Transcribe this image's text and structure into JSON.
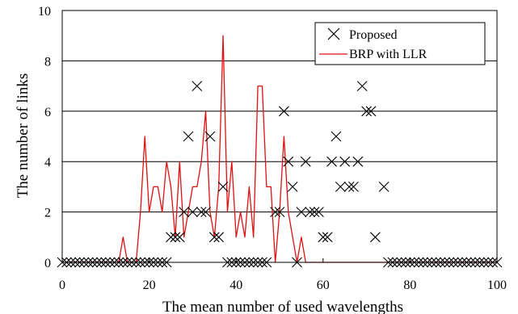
{
  "chart_data": {
    "type": "line",
    "title": "",
    "xlabel": "The mean number of used wavelengths",
    "ylabel": "The number of links",
    "xlim": [
      0,
      100
    ],
    "ylim": [
      0,
      10
    ],
    "xticks": [
      0,
      20,
      40,
      60,
      80,
      100
    ],
    "yticks": [
      0,
      2,
      4,
      6,
      8,
      10
    ],
    "grid": "horizontal",
    "legend_position": "top-right",
    "series": [
      {
        "name": "Proposed",
        "type": "scatter",
        "marker": "x",
        "color": "#000000",
        "points": [
          [
            0,
            0
          ],
          [
            1,
            0
          ],
          [
            2,
            0
          ],
          [
            3,
            0
          ],
          [
            4,
            0
          ],
          [
            5,
            0
          ],
          [
            6,
            0
          ],
          [
            7,
            0
          ],
          [
            8,
            0
          ],
          [
            9,
            0
          ],
          [
            10,
            0
          ],
          [
            11,
            0
          ],
          [
            12,
            0
          ],
          [
            13,
            0
          ],
          [
            14,
            0
          ],
          [
            15,
            0
          ],
          [
            16,
            0
          ],
          [
            17,
            0
          ],
          [
            18,
            0
          ],
          [
            19,
            0
          ],
          [
            20,
            0
          ],
          [
            21,
            0
          ],
          [
            22,
            0
          ],
          [
            23,
            0
          ],
          [
            24,
            0
          ],
          [
            25,
            1
          ],
          [
            26,
            1
          ],
          [
            27,
            1
          ],
          [
            28,
            2
          ],
          [
            29,
            5
          ],
          [
            30,
            2
          ],
          [
            31,
            7
          ],
          [
            32,
            2
          ],
          [
            33,
            2
          ],
          [
            34,
            5
          ],
          [
            35,
            1
          ],
          [
            36,
            1
          ],
          [
            37,
            3
          ],
          [
            38,
            0
          ],
          [
            39,
            0
          ],
          [
            40,
            0
          ],
          [
            41,
            0
          ],
          [
            42,
            0
          ],
          [
            43,
            0
          ],
          [
            44,
            0
          ],
          [
            45,
            0
          ],
          [
            46,
            0
          ],
          [
            47,
            0
          ],
          [
            49,
            2
          ],
          [
            50,
            2
          ],
          [
            51,
            6
          ],
          [
            52,
            4
          ],
          [
            53,
            3
          ],
          [
            54,
            0
          ],
          [
            55,
            2
          ],
          [
            56,
            4
          ],
          [
            57,
            2
          ],
          [
            58,
            2
          ],
          [
            59,
            2
          ],
          [
            60,
            1
          ],
          [
            61,
            1
          ],
          [
            62,
            4
          ],
          [
            63,
            5
          ],
          [
            64,
            3
          ],
          [
            65,
            4
          ],
          [
            66,
            3
          ],
          [
            67,
            3
          ],
          [
            68,
            4
          ],
          [
            69,
            7
          ],
          [
            70,
            6
          ],
          [
            71,
            6
          ],
          [
            72,
            1
          ],
          [
            74,
            3
          ],
          [
            75,
            0
          ],
          [
            76,
            0
          ],
          [
            77,
            0
          ],
          [
            78,
            0
          ],
          [
            79,
            0
          ],
          [
            80,
            0
          ],
          [
            81,
            0
          ],
          [
            82,
            0
          ],
          [
            83,
            0
          ],
          [
            84,
            0
          ],
          [
            85,
            0
          ],
          [
            86,
            0
          ],
          [
            87,
            0
          ],
          [
            88,
            0
          ],
          [
            89,
            0
          ],
          [
            90,
            0
          ],
          [
            91,
            0
          ],
          [
            92,
            0
          ],
          [
            93,
            0
          ],
          [
            94,
            0
          ],
          [
            95,
            0
          ],
          [
            96,
            0
          ],
          [
            97,
            0
          ],
          [
            98,
            0
          ],
          [
            99,
            0
          ],
          [
            100,
            0
          ]
        ]
      },
      {
        "name": "BRP with LLR",
        "type": "line",
        "color": "#e01010",
        "points": [
          [
            0,
            0
          ],
          [
            1,
            0
          ],
          [
            2,
            0
          ],
          [
            3,
            0
          ],
          [
            4,
            0
          ],
          [
            5,
            0
          ],
          [
            6,
            0
          ],
          [
            7,
            0
          ],
          [
            8,
            0
          ],
          [
            9,
            0
          ],
          [
            10,
            0
          ],
          [
            11,
            0
          ],
          [
            12,
            0
          ],
          [
            13,
            0
          ],
          [
            14,
            1
          ],
          [
            15,
            0
          ],
          [
            16,
            0
          ],
          [
            17,
            0
          ],
          [
            18,
            2
          ],
          [
            19,
            5
          ],
          [
            20,
            2
          ],
          [
            21,
            3
          ],
          [
            22,
            3
          ],
          [
            23,
            2
          ],
          [
            24,
            4
          ],
          [
            25,
            3
          ],
          [
            26,
            1
          ],
          [
            27,
            4
          ],
          [
            28,
            1
          ],
          [
            29,
            2
          ],
          [
            30,
            3
          ],
          [
            31,
            3
          ],
          [
            32,
            4
          ],
          [
            33,
            6
          ],
          [
            34,
            2
          ],
          [
            35,
            1
          ],
          [
            36,
            3
          ],
          [
            37,
            9
          ],
          [
            38,
            2
          ],
          [
            39,
            4
          ],
          [
            40,
            1
          ],
          [
            41,
            2
          ],
          [
            42,
            1
          ],
          [
            43,
            3
          ],
          [
            44,
            1
          ],
          [
            45,
            7
          ],
          [
            46,
            7
          ],
          [
            47,
            3
          ],
          [
            48,
            3
          ],
          [
            49,
            0
          ],
          [
            50,
            2
          ],
          [
            51,
            5
          ],
          [
            52,
            2
          ],
          [
            53,
            1
          ],
          [
            54,
            0
          ],
          [
            55,
            1
          ],
          [
            56,
            0
          ],
          [
            57,
            0
          ],
          [
            58,
            0
          ],
          [
            59,
            0
          ],
          [
            60,
            0
          ],
          [
            61,
            0
          ],
          [
            62,
            0
          ],
          [
            63,
            0
          ],
          [
            64,
            0
          ],
          [
            65,
            0
          ],
          [
            66,
            0
          ],
          [
            67,
            0
          ],
          [
            68,
            0
          ],
          [
            69,
            0
          ],
          [
            70,
            0
          ],
          [
            71,
            0
          ],
          [
            72,
            0
          ],
          [
            73,
            0
          ],
          [
            74,
            0
          ],
          [
            75,
            0
          ],
          [
            76,
            0
          ],
          [
            77,
            0
          ],
          [
            78,
            0
          ],
          [
            79,
            0
          ],
          [
            80,
            0
          ],
          [
            81,
            0
          ],
          [
            82,
            0
          ],
          [
            83,
            0
          ],
          [
            84,
            0
          ],
          [
            85,
            0
          ],
          [
            86,
            0
          ],
          [
            87,
            0
          ],
          [
            88,
            0
          ],
          [
            89,
            0
          ],
          [
            90,
            0
          ],
          [
            91,
            0
          ],
          [
            92,
            0
          ],
          [
            93,
            0
          ],
          [
            94,
            0
          ],
          [
            95,
            0
          ],
          [
            96,
            0
          ],
          [
            97,
            0
          ],
          [
            98,
            0
          ],
          [
            99,
            0
          ],
          [
            100,
            0
          ]
        ]
      }
    ]
  }
}
